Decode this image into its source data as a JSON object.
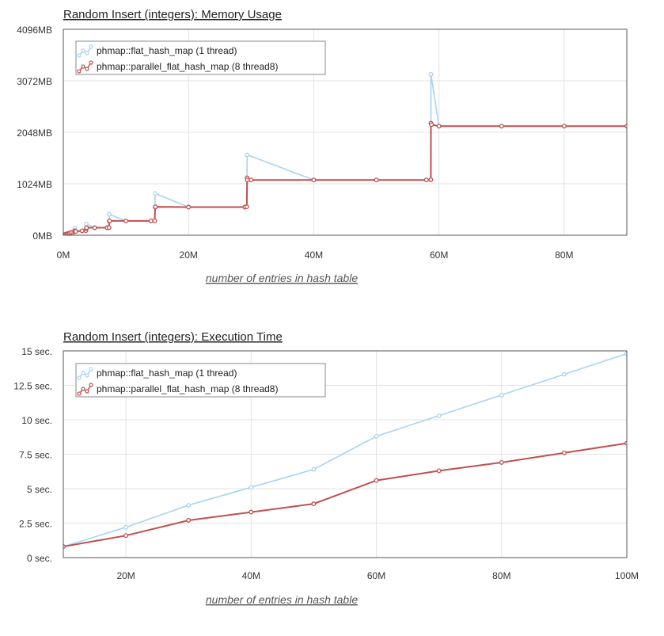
{
  "chart_data": [
    {
      "type": "line",
      "title": "Random Insert (integers): Memory Usage",
      "xlabel": "number of entries in hash table",
      "ylabel": "",
      "xlim": [
        0,
        90000000
      ],
      "ylim": [
        0,
        4096
      ],
      "x_ticks": [
        {
          "v": 0,
          "label": "0M"
        },
        {
          "v": 20000000,
          "label": "20M"
        },
        {
          "v": 40000000,
          "label": "40M"
        },
        {
          "v": 60000000,
          "label": "60M"
        },
        {
          "v": 80000000,
          "label": "80M"
        }
      ],
      "y_ticks": [
        {
          "v": 0,
          "label": "0MB"
        },
        {
          "v": 1024,
          "label": "1024MB"
        },
        {
          "v": 2048,
          "label": "2048MB"
        },
        {
          "v": 3072,
          "label": "3072MB"
        },
        {
          "v": 4096,
          "label": "4096MB"
        }
      ],
      "legend": "top-left",
      "series": [
        {
          "name": "phmap::flat_hash_map (1 thread)",
          "color": "#a8d4f2",
          "x": [
            0,
            200000,
            400000,
            600000,
            800000,
            1000000,
            1200000,
            1500000,
            1800000,
            1830000,
            2000000,
            3000000,
            3600000,
            3670000,
            5000000,
            7000000,
            7300000,
            7340000,
            10000000,
            14000000,
            14600000,
            14680000,
            20000000,
            29000000,
            29300000,
            29360000,
            40000000,
            50000000,
            58000000,
            58700000,
            58720000,
            60000000,
            70000000,
            80000000,
            90000000
          ],
          "y": [
            0,
            12,
            20,
            28,
            36,
            44,
            52,
            60,
            68,
            140,
            76,
            88,
            92,
            224,
            150,
            150,
            152,
            416,
            285,
            285,
            288,
            832,
            560,
            560,
            565,
            1600,
            1100,
            1100,
            1100,
            1105,
            3200,
            2170,
            2170,
            2170,
            2170
          ]
        },
        {
          "name": "phmap::parallel_flat_hash_map (8 thread8)",
          "color": "#c0504d",
          "x": [
            0,
            200000,
            400000,
            600000,
            800000,
            1000000,
            1200000,
            1500000,
            1800000,
            1830000,
            2000000,
            3000000,
            3600000,
            3670000,
            3700000,
            5000000,
            7000000,
            7300000,
            7340000,
            7400000,
            10000000,
            14000000,
            14600000,
            14680000,
            14700000,
            20000000,
            29000000,
            29300000,
            29360000,
            29400000,
            30000000,
            40000000,
            50000000,
            58000000,
            58700000,
            58720000,
            58800000,
            60000000,
            70000000,
            80000000,
            90000000
          ],
          "y": [
            0,
            12,
            20,
            28,
            36,
            44,
            52,
            60,
            68,
            90,
            76,
            88,
            92,
            130,
            150,
            150,
            150,
            152,
            280,
            285,
            285,
            285,
            288,
            560,
            565,
            560,
            560,
            565,
            1140,
            1100,
            1100,
            1100,
            1100,
            1100,
            1105,
            2230,
            2200,
            2170,
            2170,
            2170,
            2170
          ]
        }
      ]
    },
    {
      "type": "line",
      "title": "Random Insert (integers): Execution Time",
      "xlabel": "number of entries in hash table",
      "ylabel": "",
      "xlim": [
        10000000,
        100000000
      ],
      "ylim": [
        0,
        15
      ],
      "x_ticks": [
        {
          "v": 20000000,
          "label": "20M"
        },
        {
          "v": 40000000,
          "label": "40M"
        },
        {
          "v": 60000000,
          "label": "60M"
        },
        {
          "v": 80000000,
          "label": "80M"
        },
        {
          "v": 100000000,
          "label": "100M"
        }
      ],
      "y_ticks": [
        {
          "v": 0,
          "label": "0 sec."
        },
        {
          "v": 2.5,
          "label": "2.5 sec."
        },
        {
          "v": 5,
          "label": "5 sec."
        },
        {
          "v": 7.5,
          "label": "7.5 sec."
        },
        {
          "v": 10,
          "label": "10 sec."
        },
        {
          "v": 12.5,
          "label": "12.5 sec."
        },
        {
          "v": 15,
          "label": "15 sec."
        }
      ],
      "legend": "top-left",
      "series": [
        {
          "name": "phmap::flat_hash_map (1 thread)",
          "color": "#a8d4f2",
          "x": [
            10000000,
            20000000,
            30000000,
            40000000,
            50000000,
            60000000,
            70000000,
            80000000,
            90000000,
            100000000
          ],
          "y": [
            0.8,
            2.2,
            3.8,
            5.1,
            6.4,
            8.8,
            10.3,
            11.8,
            13.3,
            14.8
          ]
        },
        {
          "name": "phmap::parallel_flat_hash_map (8 thread8)",
          "color": "#c0504d",
          "x": [
            10000000,
            20000000,
            30000000,
            40000000,
            50000000,
            60000000,
            70000000,
            80000000,
            90000000,
            100000000
          ],
          "y": [
            0.8,
            1.6,
            2.7,
            3.3,
            3.9,
            5.6,
            6.3,
            6.9,
            7.6,
            8.3
          ]
        }
      ]
    }
  ]
}
